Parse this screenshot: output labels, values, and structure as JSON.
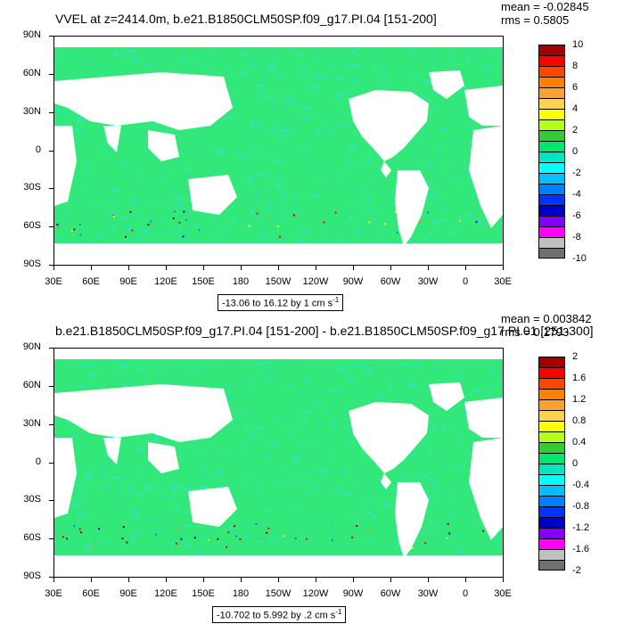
{
  "panels": [
    {
      "title": "VVEL at z=2414.0m, b.e21.B1850CLM50SP.f09_g17.PI.04 [151-200]",
      "mean": "mean = -0.02845",
      "rms": "rms = 0.5805",
      "range_label": "-13.06 to 16.12 by 1 cm s",
      "range_sup": "-1",
      "colorbar": {
        "labels": [
          "10",
          "8",
          "6",
          "4",
          "2",
          "0",
          "-2",
          "-4",
          "-6",
          "-8",
          "-10"
        ],
        "colors": [
          "#a00000",
          "#ff0000",
          "#ff4500",
          "#ff7f00",
          "#ffa033",
          "#ffd24d",
          "#ffff00",
          "#b3ff1a",
          "#33cc33",
          "#00e66e",
          "#00e6bf",
          "#00ffff",
          "#00bfff",
          "#0080ff",
          "#0033ff",
          "#0000cc",
          "#8000ff",
          "#ff00ff",
          "#c0c0c0",
          "#707070"
        ]
      }
    },
    {
      "title": "b.e21.B1850CLM50SP.f09_g17.PI.04 [151-200] - b.e21.B1850CLM50SP.f09_g17.PI.01 [251-300]",
      "mean": "mean = 0.003842",
      "rms": "rms = 0.1793",
      "range_label": "-10.702 to 5.992 by .2 cm s",
      "range_sup": "-1",
      "colorbar": {
        "labels": [
          "2",
          "1.6",
          "1.2",
          "0.8",
          "0.4",
          "0",
          "-0.4",
          "-0.8",
          "-1.2",
          "-1.6",
          "-2"
        ],
        "colors": [
          "#a00000",
          "#ff0000",
          "#ff4500",
          "#ff7f00",
          "#ffa033",
          "#ffd24d",
          "#ffff00",
          "#b3ff1a",
          "#33cc33",
          "#00e66e",
          "#00e6bf",
          "#00ffff",
          "#00bfff",
          "#0080ff",
          "#0033ff",
          "#0000cc",
          "#8000ff",
          "#ff00ff",
          "#c0c0c0",
          "#707070"
        ]
      }
    }
  ],
  "axes": {
    "lat_labels": [
      "90N",
      "60N",
      "30N",
      "0",
      "30S",
      "60S",
      "90S"
    ],
    "lon_labels": [
      "30E",
      "60E",
      "90E",
      "120E",
      "150E",
      "180",
      "150W",
      "120W",
      "90W",
      "60W",
      "30W",
      "0",
      "30E"
    ]
  },
  "colors": {
    "ocean_main": "#33e87a",
    "ocean_alt": "#2de6c4",
    "land": "#ffffff"
  }
}
